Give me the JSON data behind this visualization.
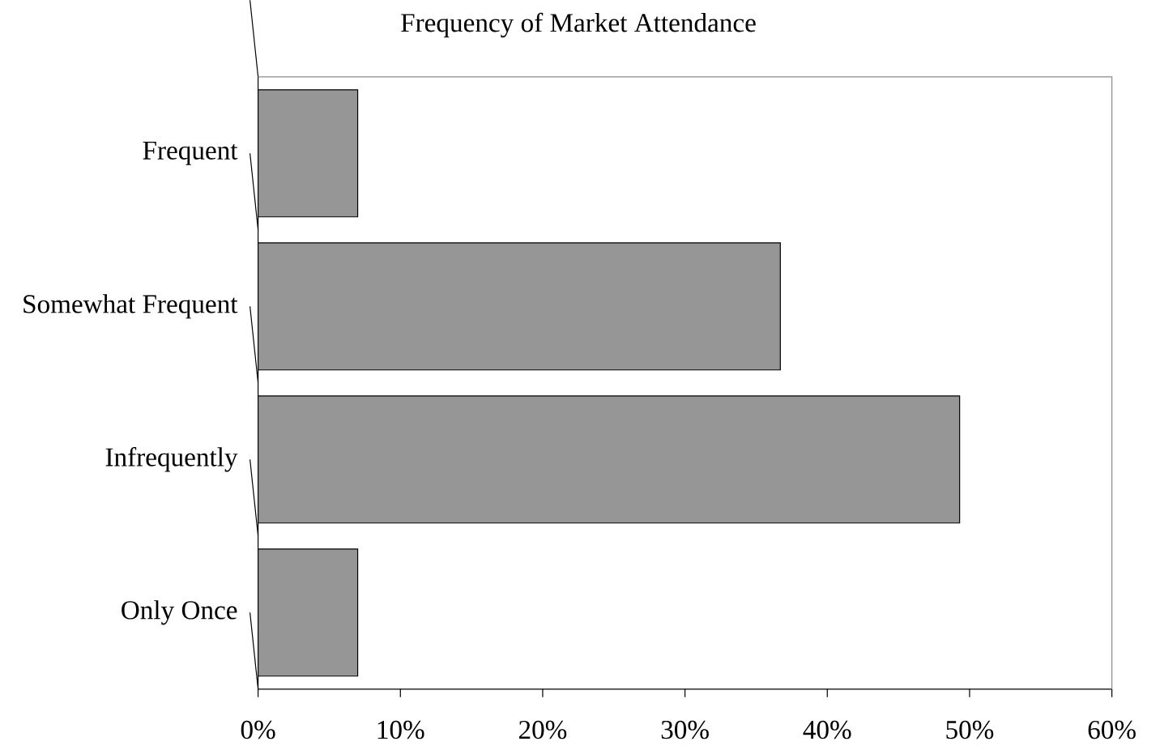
{
  "chart_data": {
    "type": "bar",
    "orientation": "horizontal",
    "title": "Frequency of Market Attendance",
    "categories": [
      "Frequent",
      "Somewhat Frequent",
      "Infrequently",
      "Only Once"
    ],
    "values": [
      7.0,
      36.7,
      49.3,
      7.0
    ],
    "color": "#969696",
    "xlim": [
      0,
      60
    ],
    "xticks": [
      {
        "value": 0,
        "label": "0%"
      },
      {
        "value": 10,
        "label": "10%"
      },
      {
        "value": 20,
        "label": "20%"
      },
      {
        "value": 30,
        "label": "30%"
      },
      {
        "value": 40,
        "label": "40%"
      },
      {
        "value": 50,
        "label": "50%"
      },
      {
        "value": 60,
        "label": "60%"
      }
    ]
  }
}
